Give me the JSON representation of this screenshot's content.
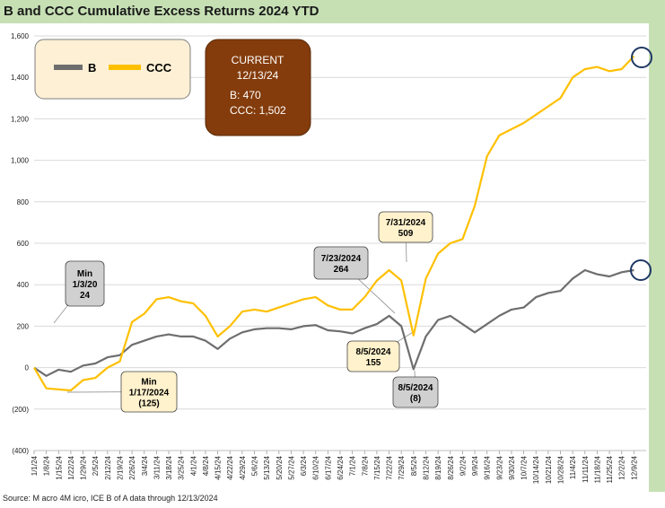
{
  "title": "B and CCC Cumulative Excess Returns 2024 YTD",
  "source": "Source: M acro 4M icro, ICE B of A     data through 12/13/2024",
  "colors": {
    "B": "#6e6e6e",
    "CCC": "#ffc000",
    "panel_green": "#c6e0b4",
    "current_box": "#843c0c"
  },
  "legend": [
    {
      "name": "B",
      "color": "#6e6e6e"
    },
    {
      "name": "CCC",
      "color": "#ffc000"
    }
  ],
  "current_box": {
    "line1": "CURRENT",
    "line2": "12/13/24",
    "line3": "B: 470",
    "line4": "CCC: 1,502"
  },
  "chart_data": {
    "type": "line",
    "x": [
      "1/1/24",
      "1/8/24",
      "1/15/24",
      "1/22/24",
      "1/29/24",
      "2/5/24",
      "2/12/24",
      "2/19/24",
      "2/26/24",
      "3/4/24",
      "3/11/24",
      "3/18/24",
      "3/25/24",
      "4/1/24",
      "4/8/24",
      "4/15/24",
      "4/22/24",
      "4/29/24",
      "5/6/24",
      "5/13/24",
      "5/20/24",
      "5/27/24",
      "6/3/24",
      "6/10/24",
      "6/17/24",
      "6/24/24",
      "7/1/24",
      "7/8/24",
      "7/15/24",
      "7/22/24",
      "7/29/24",
      "8/5/24",
      "8/12/24",
      "8/19/24",
      "8/26/24",
      "9/2/24",
      "9/9/24",
      "9/16/24",
      "9/23/24",
      "9/30/24",
      "10/7/24",
      "10/14/24",
      "10/21/24",
      "10/28/24",
      "11/4/24",
      "11/11/24",
      "11/18/24",
      "11/25/24",
      "12/2/24",
      "12/9/24"
    ],
    "series": [
      {
        "name": "B",
        "values": [
          0,
          -40,
          -10,
          -20,
          10,
          20,
          50,
          60,
          110,
          130,
          150,
          160,
          150,
          150,
          130,
          90,
          140,
          170,
          185,
          190,
          190,
          185,
          200,
          205,
          180,
          175,
          165,
          190,
          210,
          250,
          200,
          -8,
          150,
          230,
          250,
          210,
          170,
          210,
          250,
          280,
          290,
          340,
          360,
          370,
          430,
          470,
          450,
          440,
          460,
          470
        ]
      },
      {
        "name": "CCC",
        "values": [
          0,
          -100,
          -105,
          -110,
          -60,
          -50,
          0,
          30,
          220,
          260,
          330,
          340,
          320,
          310,
          250,
          150,
          200,
          270,
          280,
          270,
          290,
          310,
          330,
          340,
          300,
          280,
          280,
          340,
          420,
          470,
          420,
          155,
          430,
          550,
          600,
          620,
          780,
          1020,
          1120,
          1150,
          1180,
          1220,
          1260,
          1300,
          1400,
          1440,
          1450,
          1430,
          1440,
          1502
        ]
      }
    ],
    "yticks": [
      "(400)",
      "(200)",
      "0",
      "200",
      "400",
      "600",
      "800",
      "1,000",
      "1,200",
      "1,400",
      "1,600"
    ],
    "ylim": [
      -400,
      1600
    ],
    "annotations": [
      {
        "id": "min-b",
        "lines": [
          "Min",
          "1/3/20",
          "24"
        ]
      },
      {
        "id": "min-ccc",
        "lines": [
          "Min",
          "1/17/2024",
          "(125)"
        ]
      },
      {
        "id": "b-0723",
        "lines": [
          "7/23/2024",
          "264"
        ]
      },
      {
        "id": "ccc-0731",
        "lines": [
          "7/31/2024",
          "509"
        ]
      },
      {
        "id": "ccc-0805",
        "lines": [
          "8/5/2024",
          "155"
        ]
      },
      {
        "id": "b-0805",
        "lines": [
          "8/5/2024",
          "(8)"
        ]
      }
    ]
  }
}
